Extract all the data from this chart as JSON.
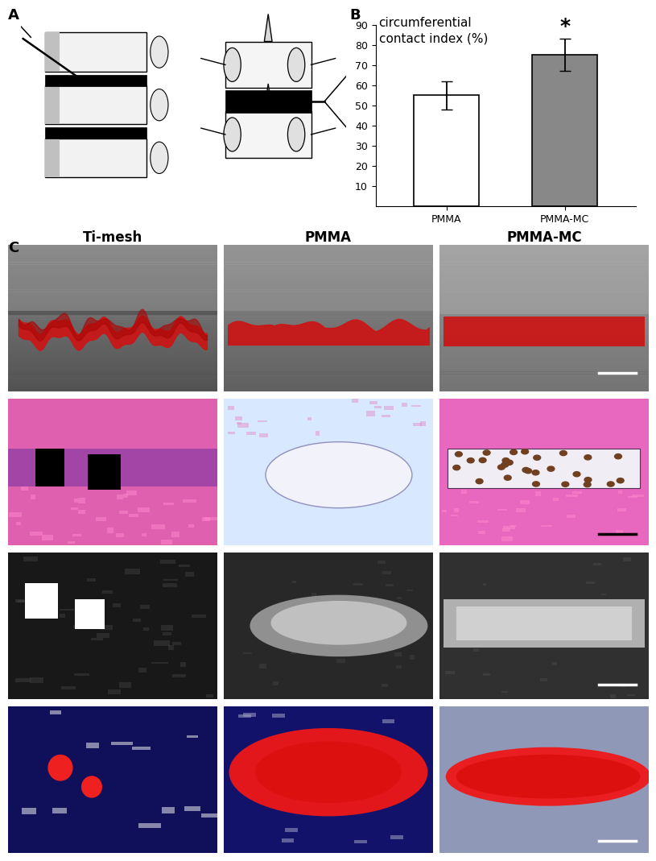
{
  "panel_labels": {
    "A": "A",
    "B": "B",
    "C": "C"
  },
  "bar_categories": [
    "PMMA",
    "PMMA-MC"
  ],
  "bar_values": [
    55,
    75
  ],
  "bar_errors": [
    7,
    8
  ],
  "bar_colors": [
    "#ffffff",
    "#888888"
  ],
  "bar_edgecolors": [
    "#000000",
    "#000000"
  ],
  "chart_title": "circumferential\ncontact index (%)",
  "ylim": [
    0,
    90
  ],
  "yticks": [
    10,
    20,
    30,
    40,
    50,
    60,
    70,
    80,
    90
  ],
  "significance_star": "*",
  "col_labels": [
    "Ti-mesh",
    "PMMA",
    "PMMA-MC"
  ],
  "background_color": "#ffffff",
  "text_color": "#000000",
  "label_fontsize": 13,
  "col_label_fontsize": 12,
  "tick_fontsize": 9,
  "chart_title_fontsize": 11
}
